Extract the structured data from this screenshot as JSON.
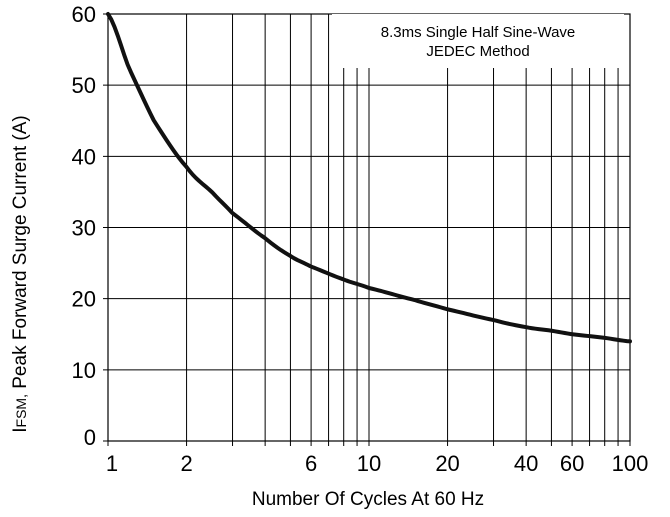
{
  "chart_data": {
    "type": "line",
    "x_scale": "log",
    "y_scale": "linear",
    "xlabel": "Number Of  Cycles  At 60 Hz",
    "ylabel_main": "I",
    "ylabel_sub": "FSM,",
    "ylabel_rest": " Peak  Forward Surge Current (A)",
    "xlim": [
      1,
      100
    ],
    "ylim": [
      0,
      60
    ],
    "x_ticks": [
      1,
      2,
      6,
      10,
      20,
      40,
      60,
      100
    ],
    "x_tick_labels": [
      "1",
      "2",
      "6",
      "10",
      "20",
      "40",
      "60",
      "100"
    ],
    "x_gridlines": [
      1,
      2,
      3,
      4,
      5,
      6,
      7,
      8,
      9,
      10,
      20,
      30,
      40,
      50,
      60,
      70,
      80,
      90,
      100
    ],
    "y_ticks": [
      0,
      10,
      20,
      30,
      40,
      50,
      60
    ],
    "y_tick_labels": [
      "0",
      "10",
      "20",
      "30",
      "40",
      "50",
      "60"
    ],
    "grid": true,
    "annotation": [
      "8.3ms Single Half Sine-Wave",
      "JEDEC Method"
    ],
    "annotation_position": "top-right",
    "series": [
      {
        "x": [
          1,
          1.2,
          1.5,
          2,
          2.5,
          3,
          4,
          5,
          6,
          8,
          10,
          15,
          20,
          30,
          40,
          50,
          60,
          80,
          100
        ],
        "values": [
          60,
          52.5,
          45,
          38.5,
          35,
          32,
          28.5,
          26,
          24.5,
          22.7,
          21.5,
          19.8,
          18.5,
          17,
          16,
          15.5,
          15,
          14.5,
          14
        ],
        "color": "#111111"
      }
    ]
  }
}
